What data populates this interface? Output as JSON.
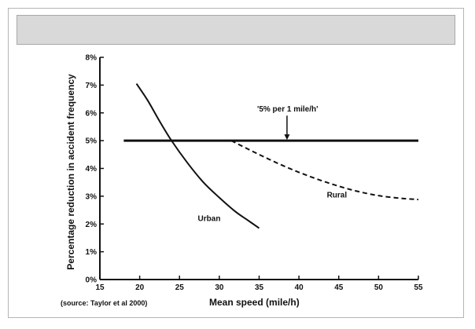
{
  "chart_data": {
    "type": "line",
    "xlabel": "Mean speed (mile/h)",
    "ylabel": "Percentage reduction in accident frequency",
    "xlim": [
      15,
      55
    ],
    "ylim": [
      0,
      8
    ],
    "x_ticks": [
      15,
      20,
      25,
      30,
      35,
      40,
      45,
      50,
      55
    ],
    "y_ticks": [
      "0%",
      "1%",
      "2%",
      "3%",
      "4%",
      "5%",
      "6%",
      "7%",
      "8%"
    ],
    "y_tick_values": [
      0,
      1,
      2,
      3,
      4,
      5,
      6,
      7,
      8
    ],
    "grid": false,
    "source_note": "(source: Taylor et al 2000)",
    "series": [
      {
        "name": "Urban",
        "style": "solid",
        "x": [
          19.6,
          21,
          22.5,
          24,
          26,
          28,
          30,
          32,
          33.5,
          35
        ],
        "y": [
          7.05,
          6.45,
          5.7,
          5.0,
          4.2,
          3.5,
          2.95,
          2.45,
          2.15,
          1.85
        ]
      },
      {
        "name": "Rural",
        "style": "dashed",
        "x": [
          31.5,
          35,
          38,
          41,
          44,
          47,
          50,
          53,
          55
        ],
        "y": [
          5.0,
          4.5,
          4.1,
          3.75,
          3.45,
          3.2,
          3.02,
          2.92,
          2.88
        ]
      },
      {
        "name": "",
        "style": "bold",
        "x": [
          18,
          55
        ],
        "y": [
          5,
          5
        ]
      }
    ],
    "annotations": [
      {
        "text": "'5% per 1 mile/h'",
        "arrow_to": [
          38.5,
          5
        ]
      }
    ]
  }
}
